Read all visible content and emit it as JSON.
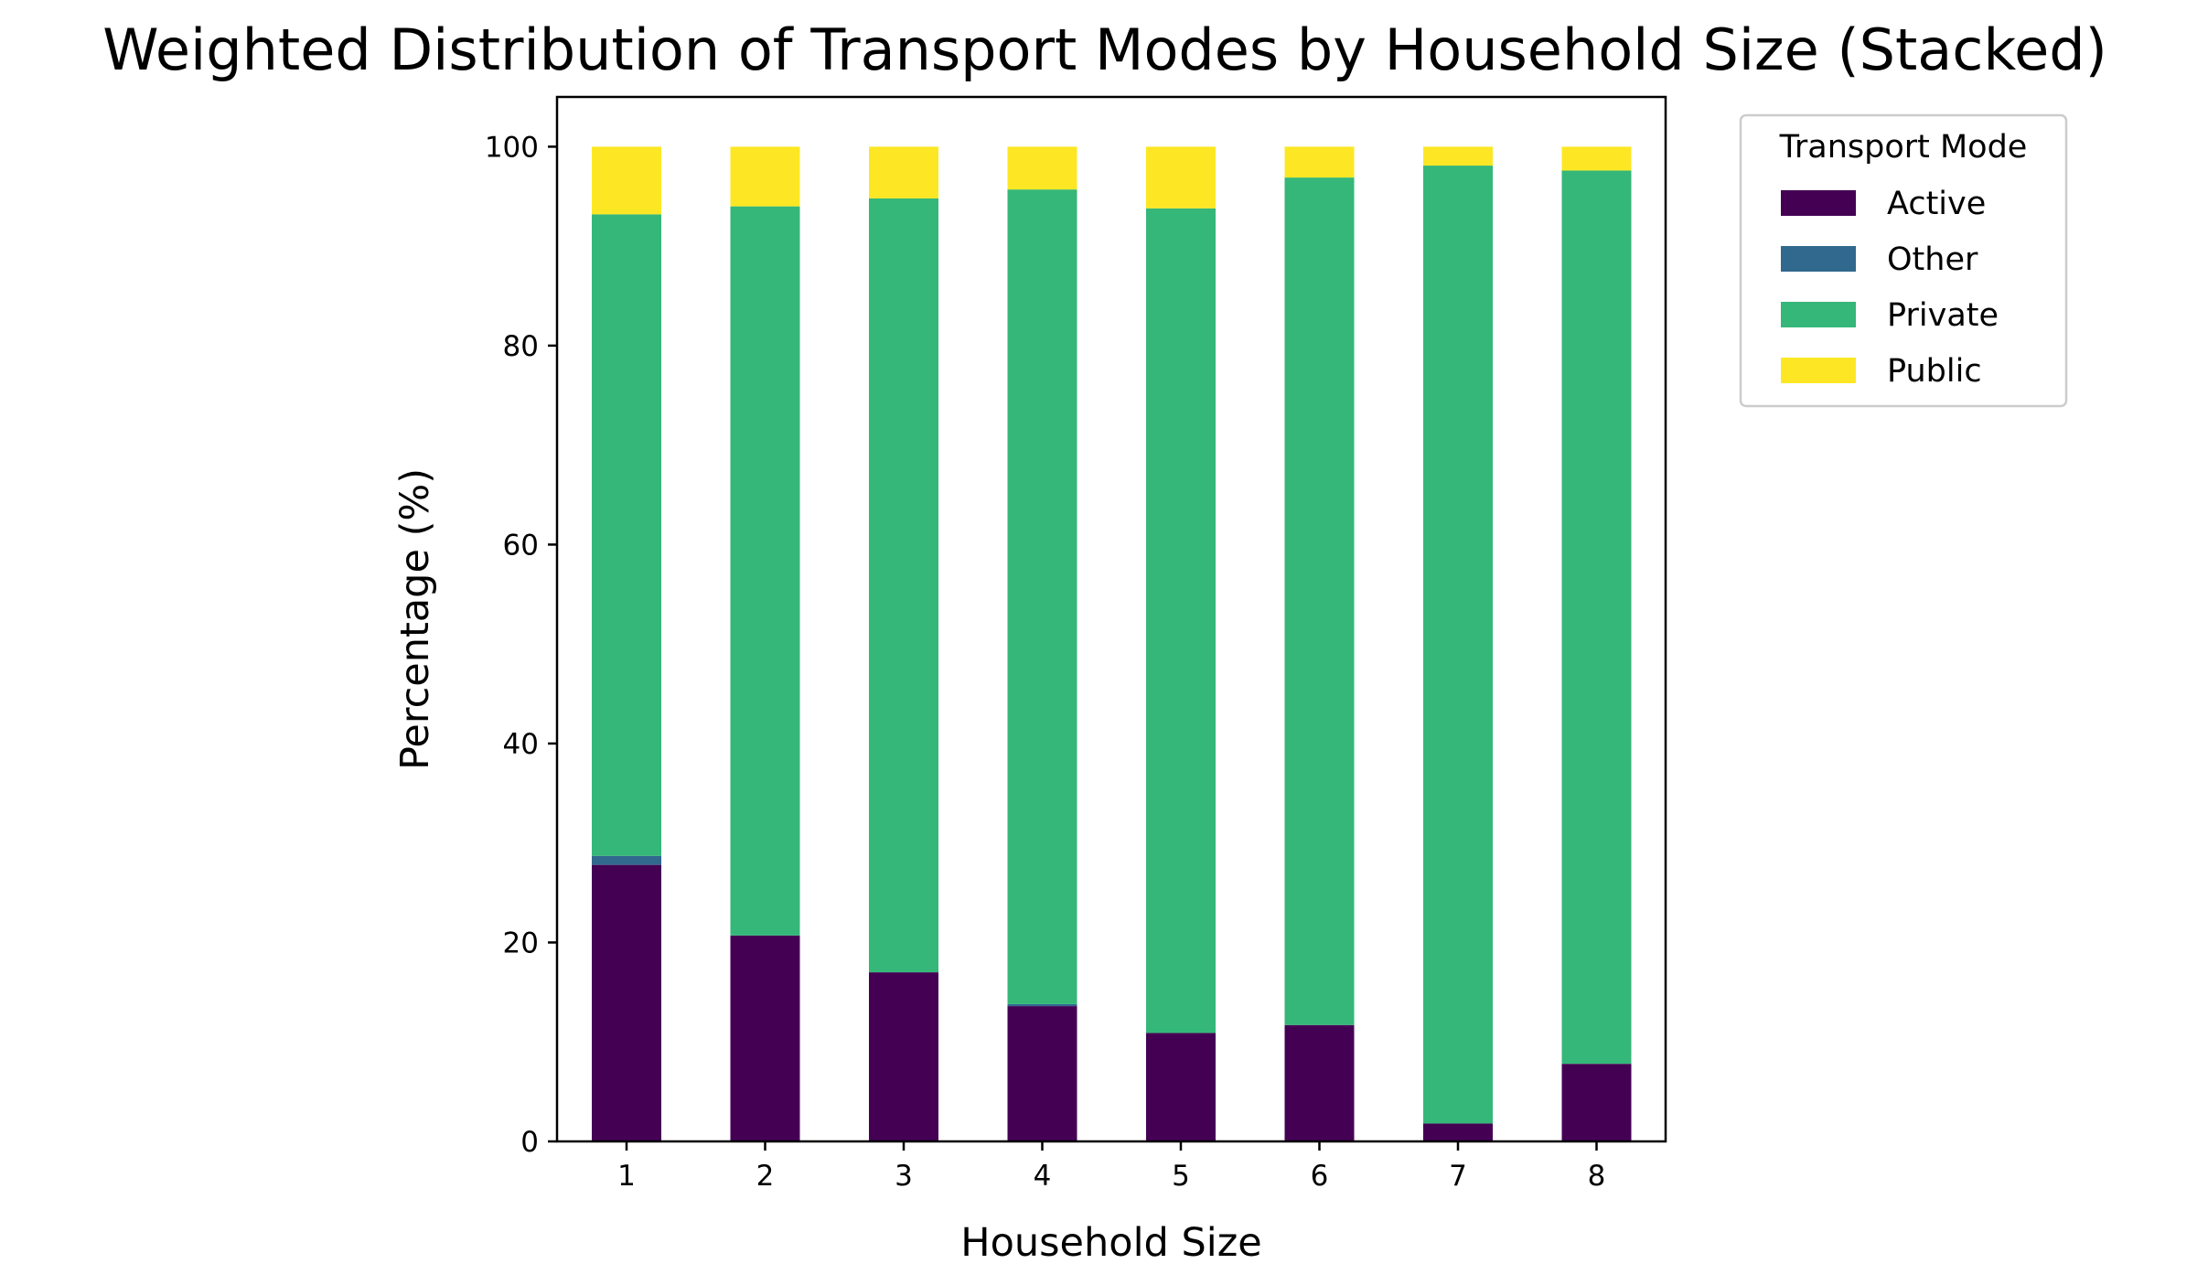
{
  "chart_data": {
    "type": "bar",
    "stacked": true,
    "title": "Weighted Distribution of Transport Modes by Household Size (Stacked)",
    "xlabel": "Household Size",
    "ylabel": "Percentage (%)",
    "categories": [
      "1",
      "2",
      "3",
      "4",
      "5",
      "6",
      "7",
      "8"
    ],
    "ylim": [
      0,
      105
    ],
    "yticks": [
      0,
      20,
      40,
      60,
      80,
      100
    ],
    "grid": false,
    "legend": {
      "title": "Transport Mode",
      "placement": "outside-right-top"
    },
    "series": [
      {
        "name": "Active",
        "color": "#440154",
        "values": [
          27.8,
          20.7,
          17.0,
          13.6,
          10.9,
          11.7,
          1.8,
          7.8
        ]
      },
      {
        "name": "Other",
        "color": "#31688e",
        "values": [
          0.9,
          0.0,
          0.0,
          0.2,
          0.0,
          0.0,
          0.0,
          0.0
        ]
      },
      {
        "name": "Private",
        "color": "#35b779",
        "values": [
          64.5,
          73.3,
          77.8,
          81.9,
          82.9,
          85.2,
          96.3,
          89.8
        ]
      },
      {
        "name": "Public",
        "color": "#fde725",
        "values": [
          6.8,
          6.0,
          5.2,
          4.3,
          6.2,
          3.1,
          1.9,
          2.4
        ]
      }
    ]
  }
}
